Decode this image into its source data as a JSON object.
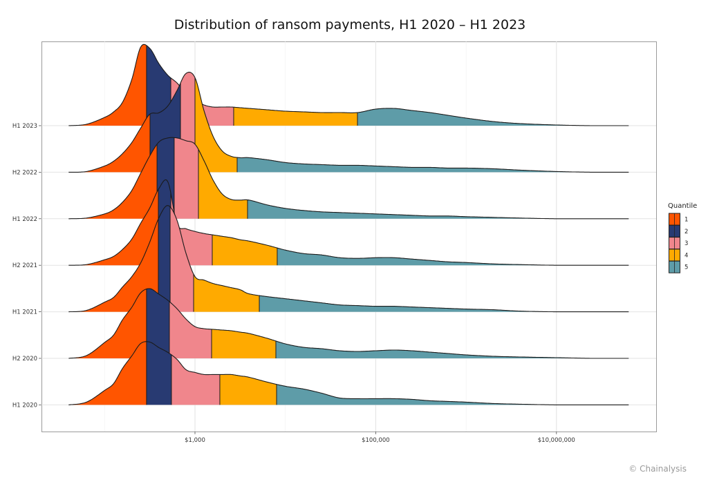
{
  "chart_data": {
    "type": "ridgeline",
    "title": "Distribution of ransom payments, H1 2020 – H1 2023",
    "xscale": "log10",
    "xlim": [
      20,
      126000000
    ],
    "x_ticks": [
      {
        "value": 1000,
        "label": "$1,000"
      },
      {
        "value": 100000,
        "label": "$100,000"
      },
      {
        "value": 10000000,
        "label": "$10,000,000"
      }
    ],
    "x_minor_gridlines": [
      100,
      10000,
      1000000
    ],
    "grid": true,
    "legend": {
      "title": "Quantile",
      "position": "right",
      "labels": [
        "1",
        "2",
        "3",
        "4",
        "5"
      ]
    },
    "quantile_colors": [
      "#FF5500",
      "#283A72",
      "#F0868C",
      "#FFAA00",
      "#5E9CA8"
    ],
    "x_grid_dollars": [
      40,
      63,
      100,
      126,
      158,
      200,
      251,
      316,
      398,
      501,
      631,
      794,
      1000,
      1259,
      1585,
      1995,
      2512,
      3162,
      3981,
      6310,
      10000,
      15849,
      25119,
      39811,
      63096,
      100000,
      158489,
      251189,
      398107,
      630957,
      1000000,
      1995262,
      3981072,
      10000000,
      25118864,
      63095734
    ],
    "series": [
      {
        "name": "H1 2023",
        "quantile_breaks": [
          291,
          540,
          2680,
          62800
        ],
        "density": [
          0,
          2,
          12,
          20,
          34,
          67,
          114,
          112,
          90,
          73,
          62,
          47,
          37,
          30,
          27,
          27,
          27,
          26,
          25,
          23,
          21,
          20,
          19,
          19,
          19,
          24,
          25,
          22,
          19,
          15,
          11,
          6,
          3,
          1,
          0,
          0
        ]
      },
      {
        "name": "H2 2022",
        "quantile_breaks": [
          318,
          691,
          1000,
          2929
        ],
        "density": [
          0,
          1,
          9,
          16,
          27,
          43,
          64,
          84,
          86,
          96,
          118,
          143,
          137,
          89,
          52,
          31,
          23,
          21,
          21,
          18,
          14,
          12,
          11,
          10,
          10,
          9,
          8,
          7,
          7,
          6,
          6,
          5,
          3,
          1,
          0,
          0
        ]
      },
      {
        "name": "H1 2022",
        "quantile_breaks": [
          380,
          589,
          1092,
          3814
        ],
        "density": [
          0,
          1,
          7,
          13,
          24,
          41,
          66,
          91,
          111,
          117,
          117,
          113,
          108,
          84,
          56,
          36,
          28,
          27,
          27,
          20,
          15,
          12,
          10,
          9,
          8,
          7,
          6,
          5,
          4,
          4,
          3,
          2,
          1,
          0,
          0,
          0
        ]
      },
      {
        "name": "H2 2021",
        "quantile_breaks": [
          393,
          540,
          1553,
          8130
        ],
        "density": [
          0,
          1,
          8,
          13,
          23,
          38,
          61,
          83,
          111,
          121,
          60,
          53,
          49,
          46,
          44,
          42,
          40,
          37,
          35,
          29,
          22,
          17,
          15,
          11,
          10,
          11,
          11,
          9,
          7,
          5,
          4,
          2,
          1,
          0,
          0,
          0
        ]
      },
      {
        "name": "H1 2021",
        "quantile_breaks": [
          393,
          531,
          966,
          5150
        ],
        "density": [
          0,
          2,
          14,
          21,
          36,
          51,
          71,
          101,
          136,
          154,
          133,
          85,
          51,
          46,
          41,
          38,
          35,
          32,
          26,
          22,
          19,
          16,
          13,
          10,
          9,
          8,
          8,
          7,
          6,
          5,
          4,
          3,
          1,
          0,
          0,
          0
        ]
      },
      {
        "name": "H2 2020",
        "quantile_breaks": [
          291,
          521,
          1527,
          7855
        ],
        "density": [
          0,
          4,
          23,
          34,
          56,
          74,
          95,
          101,
          93,
          84,
          72,
          57,
          46,
          43,
          42,
          41,
          40,
          38,
          36,
          29,
          21,
          16,
          14,
          11,
          10,
          11,
          12,
          11,
          9,
          7,
          5,
          3,
          2,
          1,
          0,
          0
        ]
      },
      {
        "name": "H1 2020",
        "quantile_breaks": [
          291,
          549,
          1884,
          8000
        ],
        "density": [
          0,
          4,
          21,
          31,
          53,
          71,
          89,
          91,
          83,
          76,
          66,
          51,
          47,
          44,
          44,
          44,
          44,
          42,
          40,
          33,
          27,
          23,
          17,
          10,
          9,
          9,
          9,
          8,
          6,
          5,
          4,
          2,
          1,
          0,
          0,
          0
        ]
      }
    ]
  },
  "credit": "© Chainalysis"
}
